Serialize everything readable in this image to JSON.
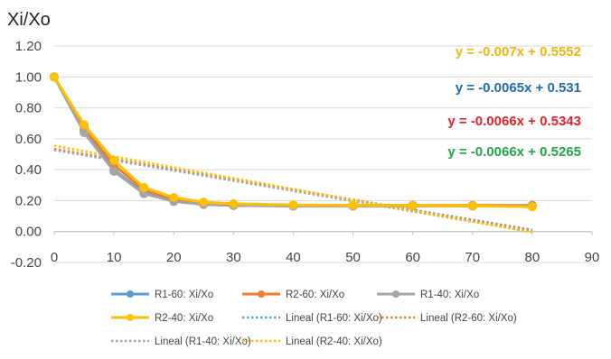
{
  "chart_data": {
    "type": "line",
    "ylabel": "Xi/Xo",
    "xlim": [
      0,
      90
    ],
    "ylim": [
      -0.2,
      1.2
    ],
    "x_ticks": [
      "0",
      "10",
      "20",
      "30",
      "40",
      "50",
      "60",
      "70",
      "80",
      "90"
    ],
    "y_ticks": [
      "-0.20",
      "0.00",
      "0.20",
      "0.40",
      "0.60",
      "0.80",
      "1.00",
      "1.20"
    ],
    "grid": true,
    "legend_position": "bottom",
    "x": [
      0,
      5,
      10,
      15,
      20,
      25,
      30,
      40,
      50,
      60,
      70,
      80
    ],
    "series": [
      {
        "name": "R1-60: Xi/Xo",
        "color": "#5B9BD5",
        "values": [
          1.0,
          0.65,
          0.4,
          0.25,
          0.2,
          0.18,
          0.17,
          0.165,
          0.165,
          0.165,
          0.165,
          0.165
        ]
      },
      {
        "name": "R2-60: Xi/Xo",
        "color": "#ED7D31",
        "values": [
          1.0,
          0.67,
          0.43,
          0.27,
          0.21,
          0.185,
          0.175,
          0.17,
          0.17,
          0.17,
          0.17,
          0.17
        ]
      },
      {
        "name": "R1-40: Xi/Xo",
        "color": "#A5A5A5",
        "values": [
          1.0,
          0.64,
          0.39,
          0.245,
          0.195,
          0.175,
          0.168,
          0.165,
          0.165,
          0.165,
          0.165,
          0.165
        ]
      },
      {
        "name": "R2-40: Xi/Xo",
        "color": "#FFC000",
        "values": [
          1.0,
          0.69,
          0.46,
          0.285,
          0.22,
          0.19,
          0.18,
          0.172,
          0.17,
          0.168,
          0.166,
          0.16
        ]
      }
    ],
    "trendlines": [
      {
        "name": "Lineal (R1-60: Xi/Xo)",
        "color": "#5B9BD5",
        "slope": -0.0065,
        "intercept": 0.531,
        "equation": "y = -0.0065x + 0.531",
        "equation_color": "#1F6BB0"
      },
      {
        "name": "Lineal (R2-60: Xi/Xo)",
        "color": "#ED7D31",
        "slope": -0.0066,
        "intercept": 0.5343,
        "equation": "y = -0.0066x + 0.5343",
        "equation_color": "#E8202A"
      },
      {
        "name": "Lineal (R1-40: Xi/Xo)",
        "color": "#A5A5A5",
        "slope": -0.0066,
        "intercept": 0.5265,
        "equation": "y = -0.0066x + 0.5265",
        "equation_color": "#1FA64A"
      },
      {
        "name": "Lineal (R2-40: Xi/Xo)",
        "color": "#FFC000",
        "slope": -0.007,
        "intercept": 0.5552,
        "equation": "y = -0.007x + 0.5552",
        "equation_color": "#F0B40A"
      }
    ],
    "equation_order": [
      "y = -0.007x + 0.5552",
      "y = -0.0065x + 0.531",
      "y = -0.0066x + 0.5343",
      "y = -0.0066x + 0.5265"
    ],
    "legend_order": [
      "R1-60: Xi/Xo",
      "R2-60: Xi/Xo",
      "R1-40: Xi/Xo",
      "R2-40: Xi/Xo",
      "Lineal (R1-60: Xi/Xo)",
      "Lineal (R2-60: Xi/Xo)",
      "Lineal (R1-40: Xi/Xo)",
      "Lineal (R2-40: Xi/Xo)"
    ]
  }
}
